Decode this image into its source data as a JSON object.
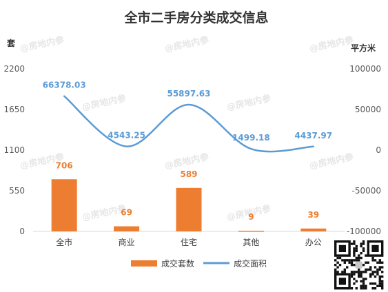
{
  "chart_data": {
    "type": "bar",
    "title": "全市二手房分类成交信息",
    "categories": [
      "全市",
      "商业",
      "住宅",
      "其他",
      "办公"
    ],
    "series": [
      {
        "name": "成交套数",
        "type": "bar",
        "axis": "left",
        "color": "#ed7d31",
        "values": [
          706,
          69,
          589,
          9,
          39
        ],
        "labels": [
          "706",
          "69",
          "589",
          "9",
          "39"
        ]
      },
      {
        "name": "成交面积",
        "type": "line",
        "axis": "right",
        "color": "#5b9bd5",
        "values": [
          66378.03,
          4543.25,
          55897.63,
          1499.18,
          4437.97
        ],
        "labels": [
          "66378.03",
          "4543.25",
          "55897.63",
          "1499.18",
          "4437.97"
        ]
      }
    ],
    "ylabel_left": "套",
    "ylabel_right": "平方米",
    "ylim_left": [
      0,
      2200
    ],
    "yticks_left": [
      "0",
      "550",
      "1100",
      "1650",
      "2200"
    ],
    "ylim_right": [
      -100000,
      100000
    ],
    "yticks_right": [
      "-100000",
      "-50000",
      "0",
      "50000",
      "100000"
    ],
    "legend": "bottom",
    "grid": false
  },
  "watermark": "@房地内参"
}
